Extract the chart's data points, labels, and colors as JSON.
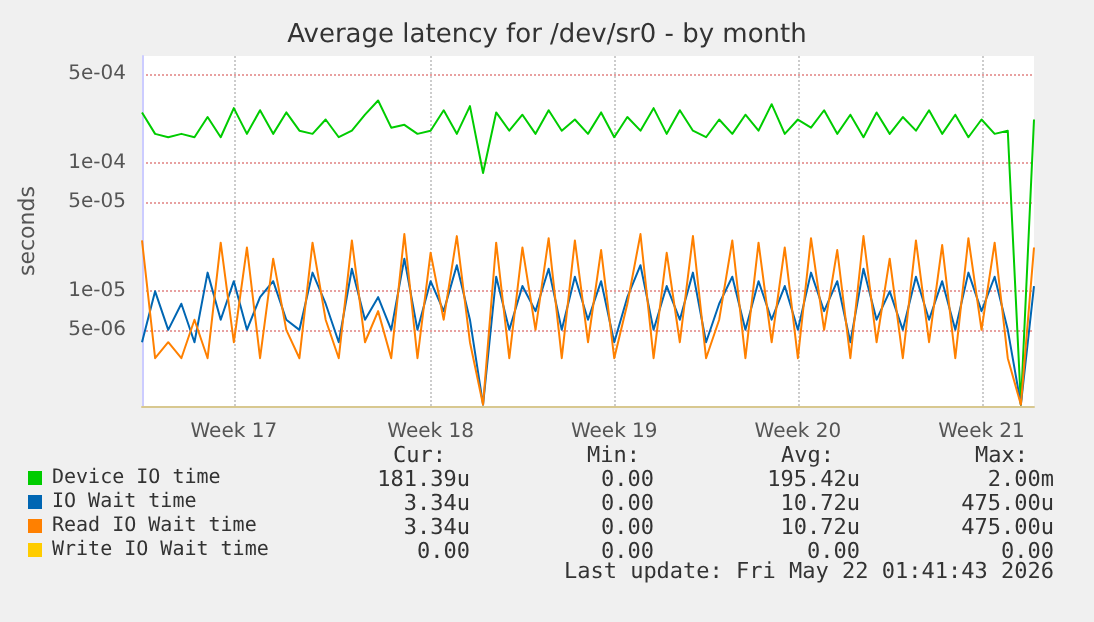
{
  "chart_data": {
    "type": "line",
    "title": "Average latency for /dev/sr0 - by month",
    "ylabel": "seconds",
    "log": "y",
    "grid": true,
    "legend": "bottom",
    "marker": "none",
    "categories": [
      null,
      null,
      null,
      null,
      null,
      null,
      null,
      "Week 17",
      null,
      null,
      null,
      null,
      null,
      null,
      null,
      null,
      null,
      null,
      null,
      null,
      null,
      null,
      "Week 18",
      null,
      null,
      null,
      null,
      null,
      null,
      null,
      null,
      null,
      null,
      null,
      null,
      null,
      "Week 19",
      null,
      null,
      null,
      null,
      null,
      null,
      null,
      null,
      null,
      null,
      null,
      null,
      null,
      "Week 20",
      null,
      null,
      null,
      null,
      null,
      null,
      null,
      null,
      null,
      null,
      null,
      null,
      null,
      "Week 21",
      null,
      null,
      null,
      null
    ],
    "ylim": [
      1.27e-06,
      0.00069
    ],
    "yticks": [
      {
        "value": 5e-06,
        "label": "5e-06"
      },
      {
        "value": 1e-05,
        "label": "1e-05"
      },
      {
        "value": 5e-05,
        "label": "5e-05"
      },
      {
        "value": 0.0001,
        "label": "1e-04"
      },
      {
        "value": 0.0005,
        "label": "5e-04"
      }
    ],
    "series": [
      {
        "name": "Device IO time",
        "color": "#00cc00",
        "values": [
          0.00025,
          0.00017,
          0.00016,
          0.00017,
          0.00016,
          0.00023,
          0.00016,
          0.00027,
          0.00017,
          0.00026,
          0.00017,
          0.00025,
          0.00018,
          0.00017,
          0.00022,
          0.00016,
          0.00018,
          0.00024,
          0.00031,
          0.00019,
          0.0002,
          0.00017,
          0.00018,
          0.00026,
          0.00017,
          0.00028,
          8.4e-05,
          0.00025,
          0.00018,
          0.00024,
          0.00017,
          0.00026,
          0.00018,
          0.00022,
          0.00017,
          0.00025,
          0.00016,
          0.00023,
          0.00018,
          0.00027,
          0.00017,
          0.00026,
          0.00018,
          0.00016,
          0.00022,
          0.00017,
          0.00024,
          0.00018,
          0.00029,
          0.00017,
          0.00022,
          0.00019,
          0.00026,
          0.00017,
          0.00024,
          0.00016,
          0.00025,
          0.00017,
          0.00023,
          0.00018,
          0.00026,
          0.00017,
          0.00024,
          0.00016,
          0.00022,
          0.00017,
          0.00018,
          1.3e-06,
          0.00022
        ]
      },
      {
        "name": "IO Wait time",
        "color": "#0066b3",
        "values": [
          4e-06,
          1e-05,
          5e-06,
          8e-06,
          4e-06,
          1.4e-05,
          6e-06,
          1.2e-05,
          5e-06,
          9e-06,
          1.2e-05,
          6e-06,
          5e-06,
          1.4e-05,
          8e-06,
          4e-06,
          1.5e-05,
          6e-06,
          9e-06,
          5e-06,
          1.8e-05,
          5e-06,
          1.2e-05,
          7e-06,
          1.6e-05,
          6e-06,
          1.3e-06,
          1.3e-05,
          5e-06,
          1.1e-05,
          7e-06,
          1.5e-05,
          5e-06,
          1.3e-05,
          6e-06,
          1.2e-05,
          4e-06,
          9e-06,
          1.6e-05,
          5e-06,
          1.1e-05,
          6e-06,
          1.4e-05,
          4e-06,
          8e-06,
          1.3e-05,
          5e-06,
          1.2e-05,
          6e-06,
          1.1e-05,
          5e-06,
          1.4e-05,
          7e-06,
          1.2e-05,
          4e-06,
          1.5e-05,
          6e-06,
          1e-05,
          5e-06,
          1.3e-05,
          6e-06,
          1.2e-05,
          5e-06,
          1.4e-05,
          7e-06,
          1.3e-05,
          5e-06,
          1.3e-06,
          1.1e-05
        ]
      },
      {
        "name": "Read IO Wait time",
        "color": "#ff8000",
        "values": [
          2.5e-05,
          3e-06,
          4e-06,
          3e-06,
          6e-06,
          3e-06,
          2.4e-05,
          4e-06,
          2.2e-05,
          3e-06,
          1.8e-05,
          5e-06,
          3e-06,
          2.4e-05,
          6e-06,
          3e-06,
          2.5e-05,
          4e-06,
          7e-06,
          3e-06,
          2.8e-05,
          3e-06,
          2e-05,
          6e-06,
          2.7e-05,
          4e-06,
          1.3e-06,
          2.4e-05,
          3e-06,
          2.2e-05,
          5e-06,
          2.6e-05,
          3e-06,
          2.5e-05,
          4e-06,
          2.1e-05,
          3e-06,
          8e-06,
          2.8e-05,
          3e-06,
          2e-05,
          4e-06,
          2.7e-05,
          3e-06,
          6e-06,
          2.5e-05,
          3e-06,
          2.4e-05,
          4e-06,
          2.2e-05,
          3e-06,
          2.6e-05,
          5e-06,
          2.1e-05,
          3e-06,
          2.7e-05,
          4e-06,
          1.8e-05,
          3e-06,
          2.5e-05,
          4e-06,
          2.3e-05,
          3e-06,
          2.6e-05,
          5e-06,
          2.4e-05,
          3e-06,
          1.3e-06,
          2.2e-05
        ]
      },
      {
        "name": "Write IO Wait time",
        "color": "#ffcc00",
        "values": [
          null,
          null,
          null,
          null,
          null,
          null,
          null,
          null,
          null,
          null,
          null,
          null,
          null,
          null,
          null,
          null,
          null,
          null,
          null,
          null,
          null,
          null,
          null,
          null,
          null,
          null,
          null,
          null,
          null,
          null,
          null,
          null,
          null,
          null,
          null,
          null,
          null,
          null,
          null,
          null,
          null,
          null,
          null,
          null,
          null,
          null,
          null,
          null,
          null,
          null,
          null,
          null,
          null,
          null,
          null,
          null,
          null,
          null,
          null,
          null,
          null,
          null,
          null,
          null,
          null,
          null,
          null,
          null,
          null
        ]
      }
    ],
    "annotations": [
      "Cur:",
      "Min:",
      "Avg:",
      "Max:",
      "181.39u",
      "0.00",
      "195.42u",
      "2.00m",
      "3.34u",
      "0.00",
      "10.72u",
      "475.00u",
      "3.34u",
      "0.00",
      "10.72u",
      "475.00u",
      "0.00",
      "0.00",
      "0.00",
      "0.00",
      "Last update: Fri May 22 01:41:43 2026"
    ]
  }
}
